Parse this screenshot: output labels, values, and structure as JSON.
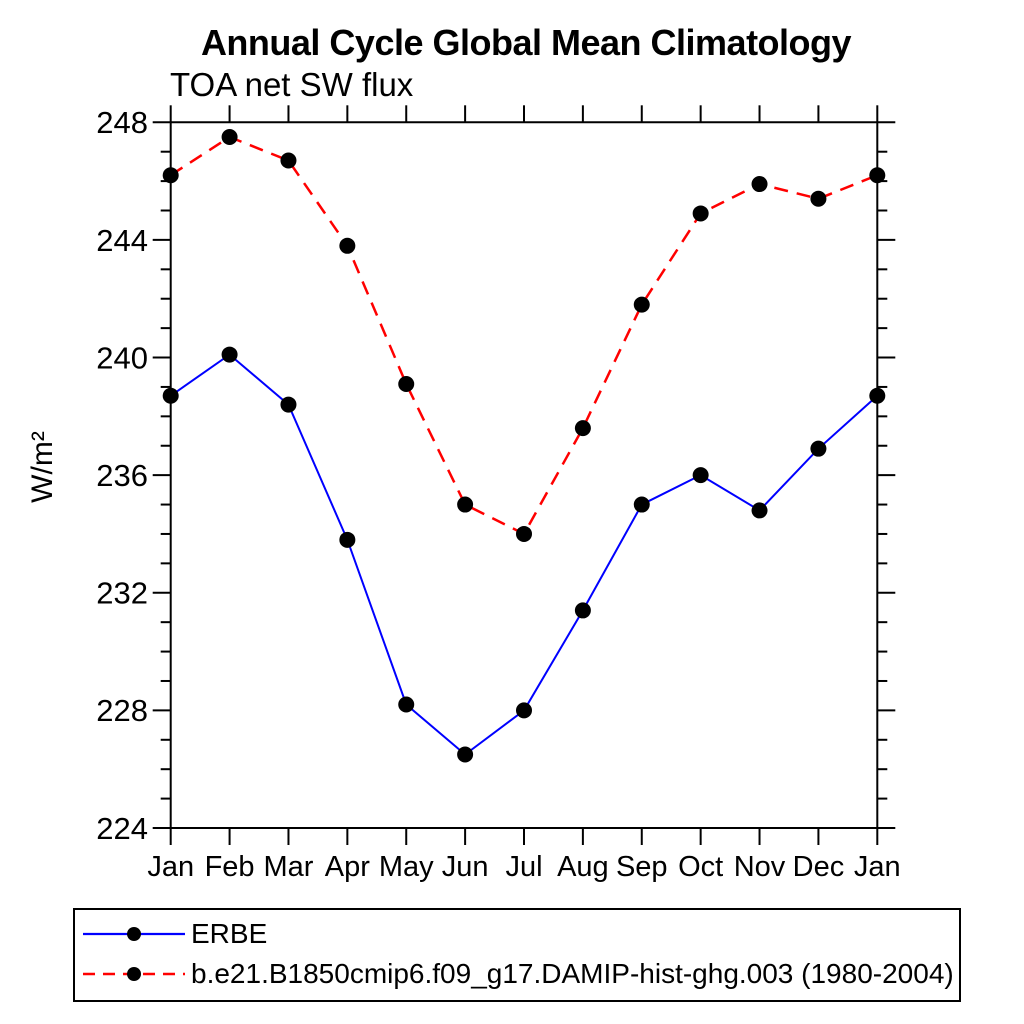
{
  "page": {
    "background": "#ffffff",
    "text_color": "#000000",
    "axis_color": "#000000"
  },
  "chart_data": {
    "type": "line",
    "title": "Annual Cycle Global Mean Climatology",
    "subtitle": "TOA net SW flux",
    "ylabel": "W/m²",
    "xlabel": "",
    "categories": [
      "Jan",
      "Feb",
      "Mar",
      "Apr",
      "May",
      "Jun",
      "Jul",
      "Aug",
      "Sep",
      "Oct",
      "Nov",
      "Dec",
      "Jan"
    ],
    "series": [
      {
        "name": "ERBE",
        "line_color": "#0000ff",
        "line_style": "solid",
        "marker": "filled-circle",
        "marker_color": "#000000",
        "values": [
          238.7,
          240.1,
          238.4,
          233.8,
          228.2,
          226.5,
          228.0,
          231.4,
          235.0,
          236.0,
          234.8,
          236.9,
          238.7
        ]
      },
      {
        "name": "b.e21.B1850cmip6.f09_g17.DAMIP-hist-ghg.003 (1980-2004)",
        "line_color": "#ff0000",
        "line_style": "dashed",
        "marker": "filled-circle",
        "marker_color": "#000000",
        "values": [
          246.2,
          247.5,
          246.7,
          243.8,
          239.1,
          235.0,
          234.0,
          237.6,
          241.8,
          244.9,
          245.9,
          245.4,
          246.2
        ]
      }
    ],
    "ylim": [
      224,
      248
    ],
    "yticks": [
      224,
      228,
      232,
      236,
      240,
      244,
      248
    ],
    "ytick_minor_step": 1,
    "grid": false,
    "legend_position": "bottom-left-box",
    "ticks": "outward-all-sides"
  }
}
